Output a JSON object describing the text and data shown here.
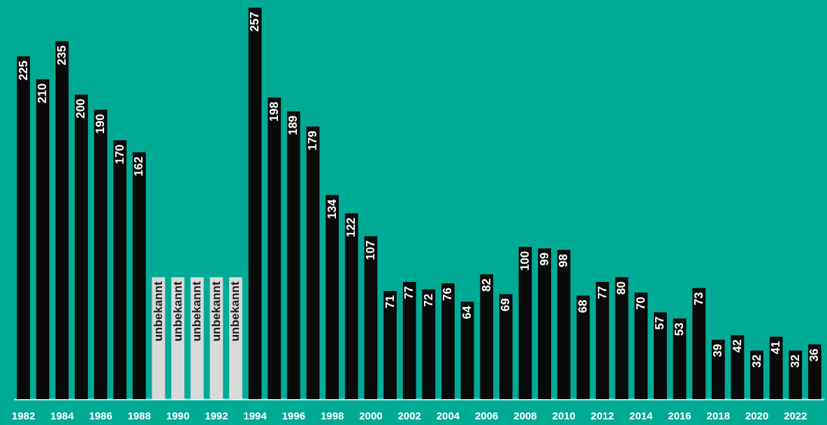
{
  "chart_data": {
    "type": "bar",
    "categories": [
      "1982",
      null,
      "1984",
      null,
      "1986",
      null,
      "1988",
      null,
      "1990",
      null,
      "1992",
      null,
      "1994",
      null,
      "1996",
      null,
      "1998",
      null,
      "2000",
      null,
      "2002",
      null,
      "2004",
      null,
      "2006",
      null,
      "2008",
      null,
      "2010",
      null,
      "2012",
      null,
      "2014",
      null,
      "2016",
      null,
      "2018",
      null,
      "2020",
      null,
      "2022",
      null
    ],
    "values": [
      225,
      210,
      235,
      200,
      190,
      170,
      162,
      80,
      80,
      80,
      80,
      80,
      257,
      198,
      189,
      179,
      134,
      122,
      107,
      71,
      77,
      72,
      76,
      64,
      82,
      69,
      100,
      99,
      98,
      68,
      77,
      80,
      70,
      57,
      53,
      73,
      39,
      42,
      32,
      41,
      32,
      36
    ],
    "value_labels": [
      "225",
      "210",
      "235",
      "200",
      "190",
      "170",
      "162",
      "unbekannt",
      "unbekannt",
      "unbekannt",
      "unbekannt",
      "unbekannt",
      "257",
      "198",
      "189",
      "179",
      "134",
      "122",
      "107",
      "71",
      "77",
      "72",
      "76",
      "64",
      "82",
      "69",
      "100",
      "99",
      "98",
      "68",
      "77",
      "80",
      "70",
      "57",
      "53",
      "73",
      "39",
      "42",
      "32",
      "41",
      "32",
      "36"
    ],
    "colors": [
      "#0a0a0a",
      "#0a0a0a",
      "#0a0a0a",
      "#0a0a0a",
      "#0a0a0a",
      "#0a0a0a",
      "#0a0a0a",
      "#d9d9d9",
      "#d9d9d9",
      "#d9d9d9",
      "#d9d9d9",
      "#d9d9d9",
      "#0a0a0a",
      "#0a0a0a",
      "#0a0a0a",
      "#0a0a0a",
      "#0a0a0a",
      "#0a0a0a",
      "#0a0a0a",
      "#0a0a0a",
      "#0a0a0a",
      "#0a0a0a",
      "#0a0a0a",
      "#0a0a0a",
      "#0a0a0a",
      "#0a0a0a",
      "#0a0a0a",
      "#0a0a0a",
      "#0a0a0a",
      "#0a0a0a",
      "#0a0a0a",
      "#0a0a0a",
      "#0a0a0a",
      "#0a0a0a",
      "#0a0a0a",
      "#0a0a0a",
      "#0a0a0a",
      "#0a0a0a",
      "#0a0a0a",
      "#0a0a0a",
      "#0a0a0a",
      "#0a0a0a"
    ]
  }
}
